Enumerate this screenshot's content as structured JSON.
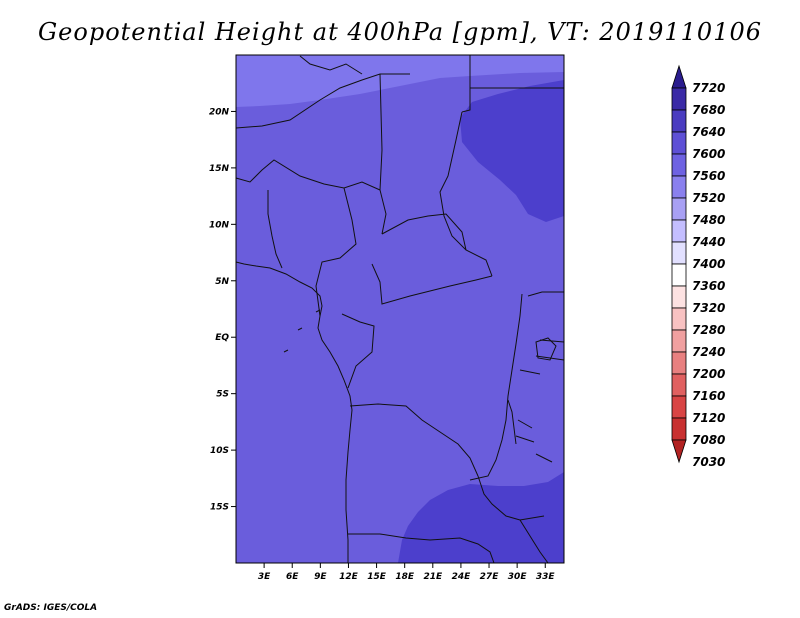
{
  "title": "Geopotential Height at 400hPa [gpm], VT: 2019110106",
  "credit": "GrADS: IGES/COLA",
  "map": {
    "lon_range": [
      0,
      35
    ],
    "lat_range": [
      -20,
      25
    ],
    "x_ticks": [
      {
        "lon": 3,
        "label": "3E"
      },
      {
        "lon": 6,
        "label": "6E"
      },
      {
        "lon": 9,
        "label": "9E"
      },
      {
        "lon": 12,
        "label": "12E"
      },
      {
        "lon": 15,
        "label": "15E"
      },
      {
        "lon": 18,
        "label": "18E"
      },
      {
        "lon": 21,
        "label": "21E"
      },
      {
        "lon": 24,
        "label": "24E"
      },
      {
        "lon": 27,
        "label": "27E"
      },
      {
        "lon": 30,
        "label": "30E"
      },
      {
        "lon": 33,
        "label": "33E"
      }
    ],
    "y_ticks": [
      {
        "lat": 20,
        "label": "20N"
      },
      {
        "lat": 15,
        "label": "15N"
      },
      {
        "lat": 10,
        "label": "10N"
      },
      {
        "lat": 5,
        "label": "5N"
      },
      {
        "lat": 0,
        "label": "EQ"
      },
      {
        "lat": -5,
        "label": "5S"
      },
      {
        "lat": -10,
        "label": "10S"
      },
      {
        "lat": -15,
        "label": "15S"
      }
    ],
    "fill_colors": {
      "band_7560_7600": "#6a5ddc",
      "band_7600_7640": "#4c3fcc",
      "band_7520_7560": "#7f76ec",
      "boundary": "#111111"
    }
  },
  "colorbar": {
    "levels": [
      "7720",
      "7680",
      "7640",
      "7600",
      "7560",
      "7520",
      "7480",
      "7440",
      "7400",
      "7360",
      "7320",
      "7280",
      "7240",
      "7200",
      "7160",
      "7120",
      "7080",
      "7030"
    ],
    "colors": [
      "#2a1c8e",
      "#3a2aa6",
      "#4a3cc0",
      "#5e50d6",
      "#6e62e2",
      "#8a80ee",
      "#a8a0f4",
      "#c4beff",
      "#e2e0ff",
      "#ffffff",
      "#fde2e2",
      "#f8c2c2",
      "#f0a0a0",
      "#e88080",
      "#e06060",
      "#d84444",
      "#c83030",
      "#b22222"
    ]
  }
}
